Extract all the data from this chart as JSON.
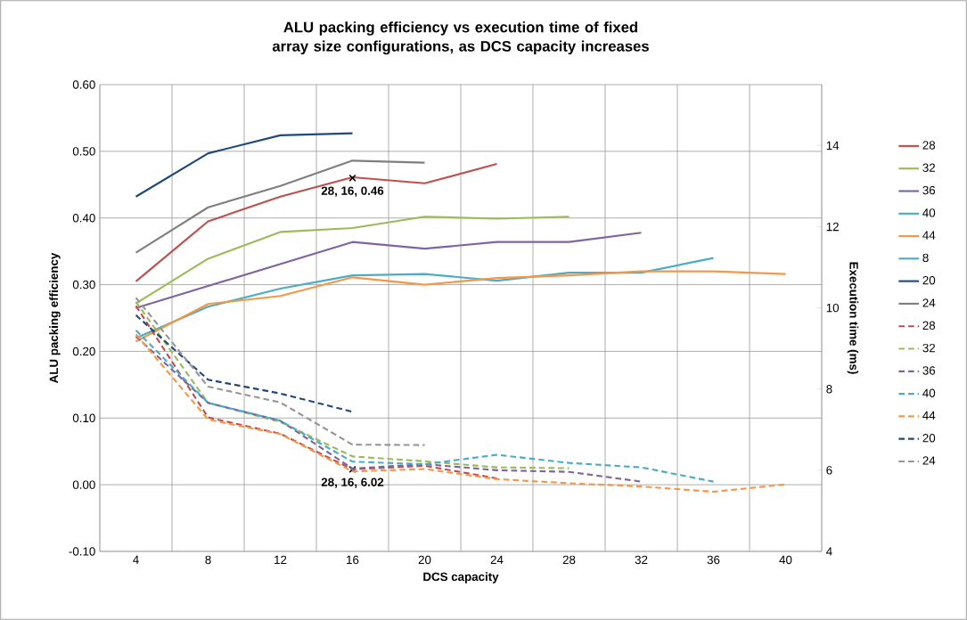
{
  "chart_data": {
    "type": "line",
    "title": "ALU packing efficiency vs execution time of fixed array size configurations, as DCS capacity increases",
    "xlabel": "DCS capacity",
    "ylabel": "ALU packing efficiency",
    "y2label": "Execution time (ms)",
    "categories": [
      "4",
      "8",
      "12",
      "16",
      "20",
      "24",
      "28",
      "32",
      "36",
      "40"
    ],
    "ylim": [
      -0.1,
      0.6
    ],
    "yticks": [
      {
        "value": -0.1,
        "label": "-0.10"
      },
      {
        "value": 0.0,
        "label": "0.00"
      },
      {
        "value": 0.1,
        "label": "0.10"
      },
      {
        "value": 0.2,
        "label": "0.20"
      },
      {
        "value": 0.3,
        "label": "0.30"
      },
      {
        "value": 0.4,
        "label": "0.40"
      },
      {
        "value": 0.5,
        "label": "0.50"
      },
      {
        "value": 0.6,
        "label": "0.60"
      }
    ],
    "y2lim": [
      4,
      15.5
    ],
    "y2ticks": [
      4,
      6,
      8,
      10,
      12,
      14
    ],
    "grid": true,
    "legend": "right",
    "series": [
      {
        "name": "28",
        "color": "#c0504d",
        "line_style": "solid",
        "values": [
          0.305,
          0.395,
          0.432,
          0.461,
          0.452,
          0.481,
          null,
          null,
          null,
          null
        ]
      },
      {
        "name": "32",
        "color": "#9bbb59",
        "line_style": "solid",
        "values": [
          0.272,
          0.339,
          0.379,
          0.385,
          0.402,
          0.399,
          0.402,
          null,
          null,
          null
        ]
      },
      {
        "name": "36",
        "color": "#8064a2",
        "line_style": "solid",
        "values": [
          0.265,
          0.298,
          0.331,
          0.364,
          0.354,
          0.364,
          0.364,
          0.378,
          null,
          null
        ]
      },
      {
        "name": "40",
        "color": "#4bacc6",
        "line_style": "solid",
        "values": [
          0.22,
          0.267,
          0.294,
          0.314,
          0.316,
          0.306,
          0.318,
          0.318,
          0.34,
          null
        ]
      },
      {
        "name": "44",
        "color": "#f79646",
        "line_style": "solid",
        "values": [
          0.215,
          0.271,
          0.283,
          0.311,
          0.3,
          0.31,
          0.314,
          0.32,
          0.32,
          0.316
        ]
      },
      {
        "name": "8",
        "color": "#4bacc6",
        "line_style": "solid",
        "values": [
          null,
          null,
          null,
          null,
          null,
          null,
          null,
          null,
          null,
          null
        ]
      },
      {
        "name": "20",
        "color": "#1f497d",
        "line_style": "solid",
        "values": [
          0.432,
          0.497,
          0.524,
          0.527,
          null,
          null,
          null,
          null,
          null,
          null
        ]
      },
      {
        "name": "24",
        "color": "#7f7f7f",
        "line_style": "solid",
        "values": [
          0.348,
          0.416,
          0.448,
          0.486,
          0.483,
          null,
          null,
          null,
          null,
          null
        ]
      },
      {
        "name": "28",
        "color": "#c0504d",
        "line_style": "dashed",
        "axis": "y2",
        "values": [
          10.05,
          7.3,
          6.9,
          6.02,
          6.11,
          5.8,
          null,
          null,
          null,
          null
        ]
      },
      {
        "name": "32",
        "color": "#9bbb59",
        "line_style": "dashed",
        "axis": "y2",
        "values": [
          10.15,
          7.66,
          7.19,
          6.34,
          6.22,
          6.07,
          6.05,
          null,
          null,
          null
        ]
      },
      {
        "name": "36",
        "color": "#8064a2",
        "line_style": "dashed",
        "axis": "y2",
        "values": [
          9.3,
          7.66,
          7.22,
          6.04,
          6.15,
          6.0,
          5.96,
          5.72,
          null,
          null
        ]
      },
      {
        "name": "40",
        "color": "#4bacc6",
        "line_style": "dashed",
        "axis": "y2",
        "values": [
          9.45,
          7.66,
          7.22,
          6.21,
          6.15,
          6.38,
          6.18,
          6.07,
          5.72,
          null
        ]
      },
      {
        "name": "44",
        "color": "#f79646",
        "line_style": "dashed",
        "axis": "y2",
        "values": [
          9.35,
          7.25,
          6.89,
          5.97,
          6.03,
          5.78,
          5.68,
          5.6,
          5.47,
          5.65
        ]
      },
      {
        "name": "20",
        "color": "#1f497d",
        "line_style": "dashed",
        "axis": "y2",
        "values": [
          9.82,
          8.23,
          7.89,
          7.44,
          null,
          null,
          null,
          null,
          null,
          null
        ]
      },
      {
        "name": "24",
        "color": "#969696",
        "line_style": "dashed",
        "axis": "y2",
        "values": [
          10.25,
          8.06,
          7.67,
          6.63,
          6.62,
          null,
          null,
          null,
          null,
          null
        ]
      }
    ],
    "annotations": [
      {
        "text": "28, 16, 0.46",
        "x": "16",
        "y": 0.46
      },
      {
        "text": "28, 16, 6.02",
        "x": "16",
        "y": 0.023
      }
    ]
  }
}
